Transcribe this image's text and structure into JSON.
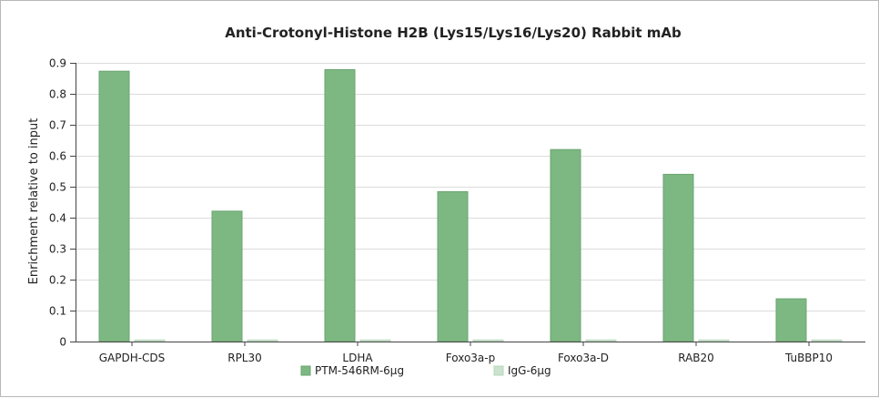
{
  "chart_data": {
    "type": "bar",
    "title": "Anti-Crotonyl-Histone H2B (Lys15/Lys16/Lys20) Rabbit mAb",
    "ylabel": "Enrichment relative to input",
    "xlabel": "",
    "ylim": [
      0,
      0.9
    ],
    "yticks": [
      0,
      0.1,
      0.2,
      0.3,
      0.4,
      0.5,
      0.6,
      0.7,
      0.8,
      0.9
    ],
    "ytick_labels": [
      "0",
      "0.1",
      "0.2",
      "0.3",
      "0.4",
      "0.5",
      "0.6",
      "0.7",
      "0.8",
      "0.9"
    ],
    "grid": true,
    "legend_position": "bottom",
    "categories": [
      "GAPDH-CDS",
      "RPL30",
      "LDHA",
      "Foxo3a-p",
      "Foxo3a-D",
      "RAB20",
      "TuBBP10"
    ],
    "series": [
      {
        "name": "PTM-546RM-6μg",
        "color": "#7db882",
        "values": [
          0.873,
          0.421,
          0.878,
          0.484,
          0.62,
          0.54,
          0.138
        ]
      },
      {
        "name": "IgG-6μg",
        "color": "#c9e3cc",
        "values": [
          0.005,
          0.005,
          0.005,
          0.005,
          0.005,
          0.005,
          0.005
        ]
      }
    ]
  }
}
